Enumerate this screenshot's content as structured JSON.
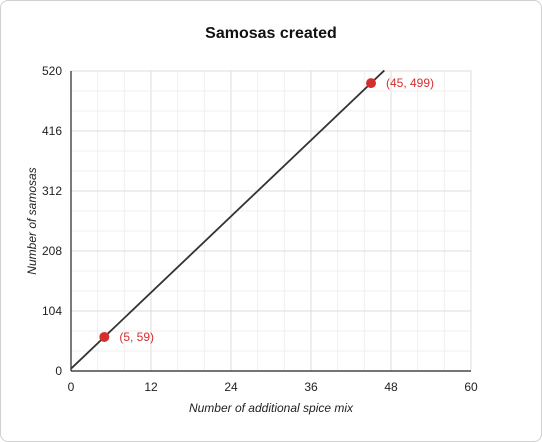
{
  "chart_data": {
    "type": "line",
    "title": "Samosas created",
    "xlabel": "Number of additional spice mix",
    "ylabel": "Number of samosas",
    "xlim": [
      0,
      60
    ],
    "ylim": [
      0,
      520
    ],
    "xticks": [
      0,
      12,
      24,
      36,
      48,
      60
    ],
    "yticks": [
      0,
      104,
      208,
      312,
      416,
      520
    ],
    "grid": true,
    "line": {
      "x": [
        0,
        47
      ],
      "y": [
        4,
        521
      ],
      "color": "#333333"
    },
    "points": [
      {
        "x": 5,
        "y": 59,
        "label": "(5, 59)"
      },
      {
        "x": 45,
        "y": 499,
        "label": "(45, 499)"
      }
    ],
    "point_color": "#d32f2f"
  }
}
